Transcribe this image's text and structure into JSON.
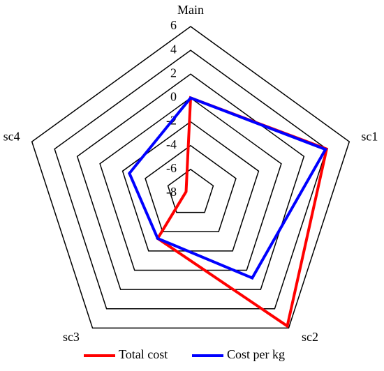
{
  "chart_data": {
    "type": "radar",
    "categories": [
      "Main",
      "sc1",
      "sc2",
      "sc3",
      "sc4"
    ],
    "series": [
      {
        "name": "Total cost",
        "color": "#ff0000",
        "values": [
          0,
          4.0,
          5.8,
          -3.3,
          -7.6
        ]
      },
      {
        "name": "Cost per kg",
        "color": "#0000ff",
        "values": [
          0,
          3.9,
          0.8,
          -3.3,
          -2.6
        ]
      }
    ],
    "ylim": [
      -8,
      6
    ],
    "yticks": [
      -8,
      -6,
      -4,
      -2,
      0,
      2,
      4,
      6
    ],
    "grid": true,
    "legend": "bottom"
  }
}
